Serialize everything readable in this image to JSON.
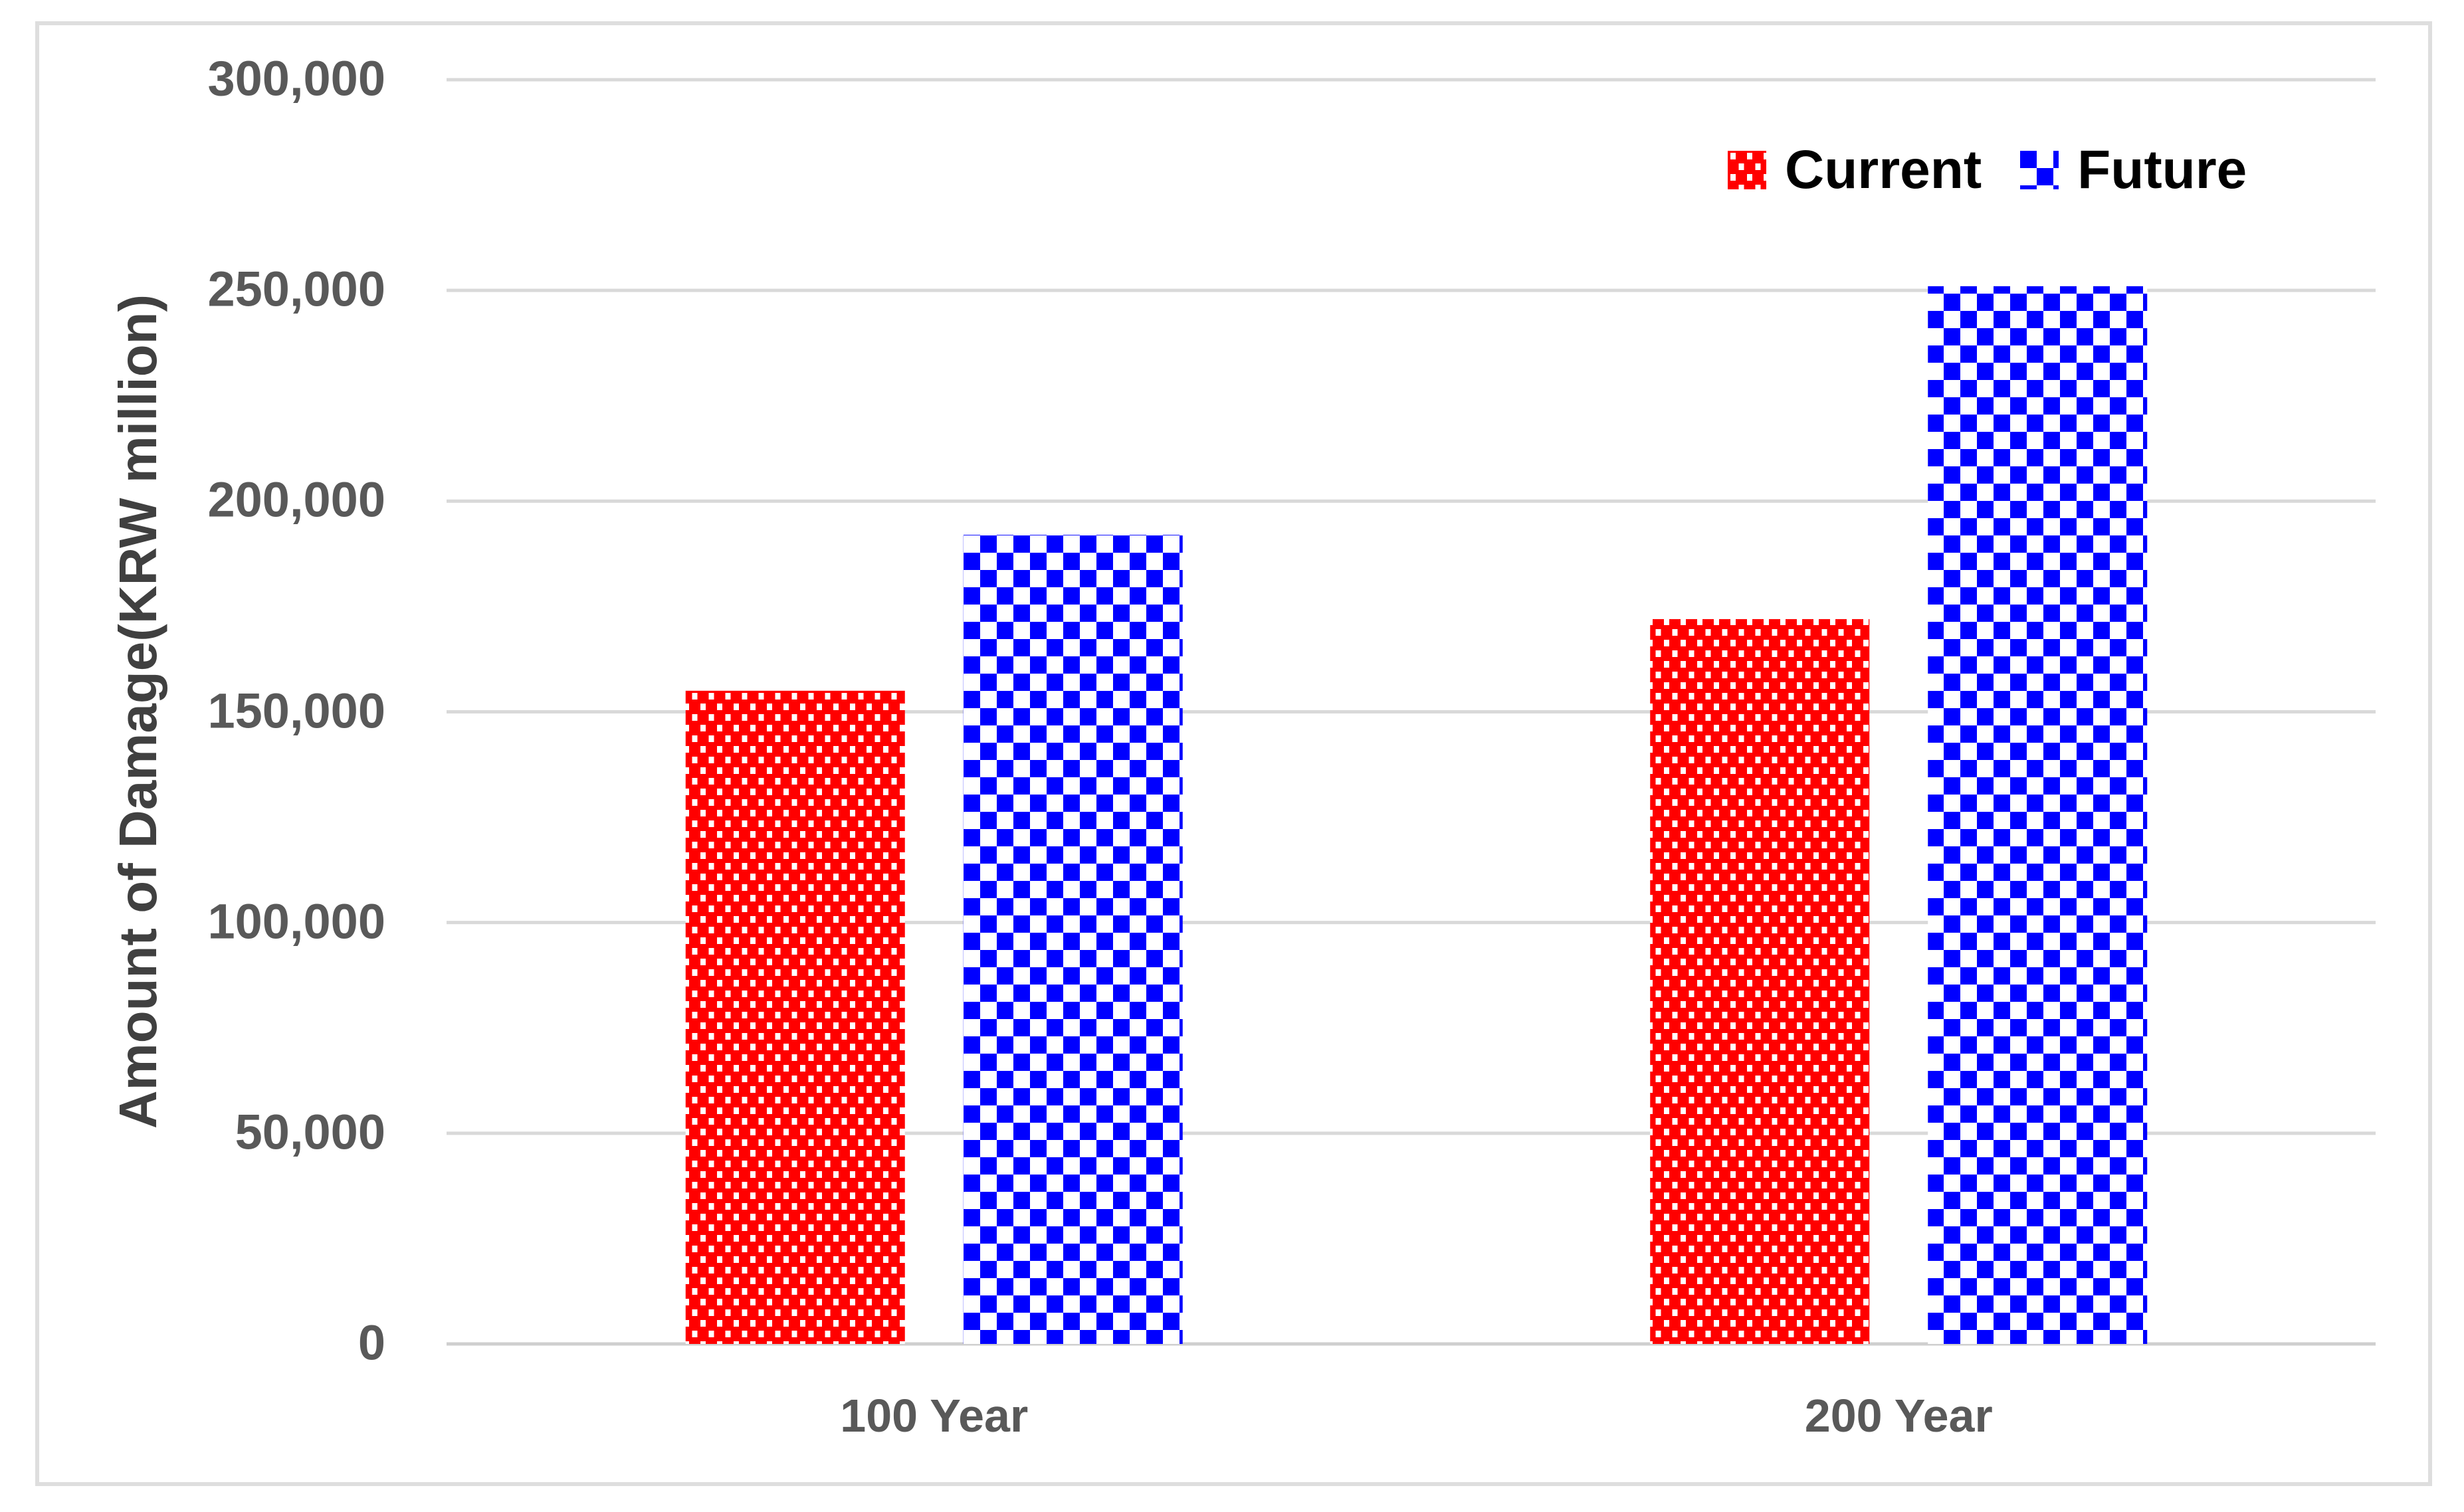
{
  "chart_data": {
    "type": "bar",
    "title": "",
    "categories": [
      "100 Year",
      "200 Year"
    ],
    "series": [
      {
        "name": "Current",
        "values": [
          155000,
          172000
        ],
        "color": "#FF0000",
        "pattern": "white-dots-on-red"
      },
      {
        "name": "Future",
        "values": [
          192000,
          251000
        ],
        "color": "#0000FF",
        "pattern": "blue-white-checkerboard"
      }
    ],
    "xlabel": "",
    "ylabel": "Amount of Damage(KRW million)",
    "ylim": [
      0,
      300000
    ],
    "ytick_step": 50000,
    "yticks": [
      "0",
      "50,000",
      "100,000",
      "150,000",
      "200,000",
      "250,000",
      "300,000"
    ],
    "grid": "horizontal-only",
    "legend_position": "top-right"
  },
  "colors": {
    "bar_current": "#FF0000",
    "bar_future": "#0000FF",
    "gridline": "#D9D9D9",
    "axis_line": "#CFCFCF",
    "tick_text": "#595959",
    "axis_title_text": "#404040",
    "legend_text": "#000000",
    "frame_border": "#DEDEDE",
    "background": "#FFFFFF"
  }
}
